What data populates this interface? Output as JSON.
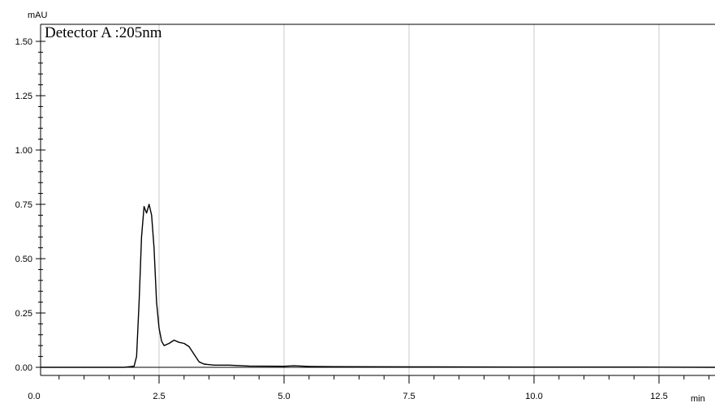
{
  "chart_data": {
    "type": "line",
    "title": "Detector A :205nm",
    "ylabel": "mAU",
    "xlabel": "min",
    "xlim": [
      0,
      15
    ],
    "ylim": [
      -0.05,
      1.55
    ],
    "x_ticks": [
      0.0,
      2.5,
      5.0,
      7.5,
      10.0,
      12.5
    ],
    "x_tick_labels": [
      "0.0",
      "2.5",
      "5.0",
      "7.5",
      "10.0",
      "12.5"
    ],
    "y_ticks": [
      0.0,
      0.25,
      0.5,
      0.75,
      1.0,
      1.25,
      1.5
    ],
    "y_tick_labels": [
      "0.00",
      "0.25",
      "0.50",
      "0.75",
      "1.00",
      "1.25",
      "1.50"
    ],
    "grid": true,
    "series": [
      {
        "x": [
          0.0,
          1.0,
          1.8,
          2.0,
          2.05,
          2.1,
          2.15,
          2.2,
          2.25,
          2.3,
          2.35,
          2.4,
          2.45,
          2.5,
          2.55,
          2.6,
          2.7,
          2.8,
          2.9,
          3.0,
          3.1,
          3.2,
          3.3,
          3.4,
          3.6,
          3.9,
          4.3,
          5.0,
          5.2,
          5.5,
          6.0,
          8.0,
          10.0,
          12.0,
          15.0
        ],
        "y": [
          0.0,
          0.0,
          0.0,
          0.005,
          0.05,
          0.3,
          0.6,
          0.74,
          0.71,
          0.75,
          0.7,
          0.55,
          0.3,
          0.18,
          0.12,
          0.1,
          0.11,
          0.125,
          0.115,
          0.11,
          0.095,
          0.06,
          0.025,
          0.015,
          0.01,
          0.01,
          0.006,
          0.005,
          0.007,
          0.004,
          0.003,
          0.002,
          0.001,
          0.001,
          0.0
        ]
      }
    ]
  }
}
